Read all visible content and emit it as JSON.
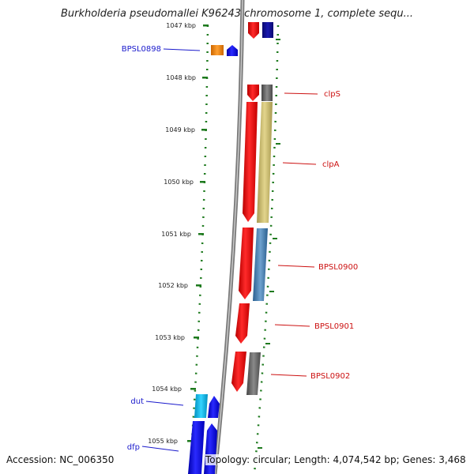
{
  "title": "Burkholderia pseudomallei K96243 chromosome 1, complete sequ...",
  "ticks": [
    "1047 kbp",
    "1048 kbp",
    "1049 kbp",
    "1050 kbp",
    "1051 kbp",
    "1052 kbp",
    "1053 kbp",
    "1054 kbp",
    "1055 kbp"
  ],
  "labels": {
    "bpsl0898": "BPSL0898",
    "clps": "clpS",
    "clpa": "clpA",
    "bpsl0900": "BPSL0900",
    "bpsl0901": "BPSL0901",
    "bpsl0902": "BPSL0902",
    "dut": "dut",
    "dfp": "dfp"
  },
  "colors": {
    "backbone": "#888888",
    "forward_cds": "#ee1111",
    "reverse_cds": "#1a1aee",
    "tick_marks": "#1e7a1e",
    "label_left": "#1a1acc",
    "label_right": "#cc1111"
  },
  "footer": {
    "accession": "Accession: NC_006350",
    "info": "Topology: circular; Length: 4,074,542 bp; Genes: 3,468"
  }
}
